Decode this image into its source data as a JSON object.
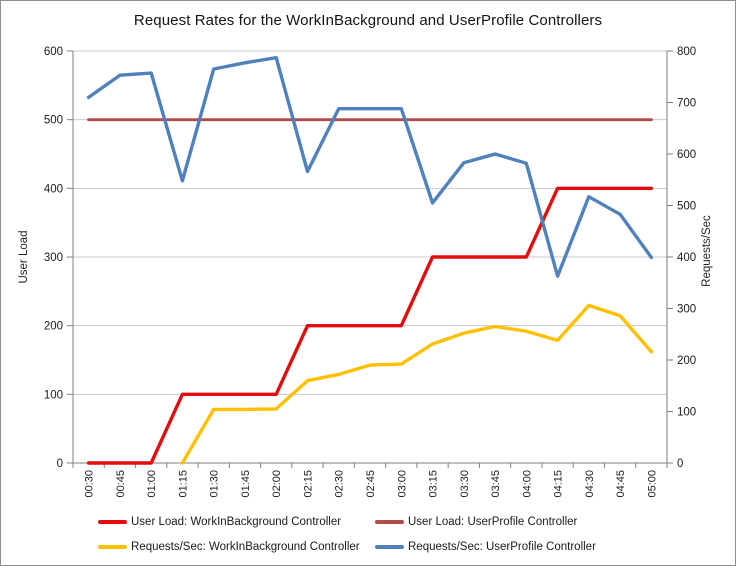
{
  "chart_data": {
    "type": "line",
    "title": "Request Rates for the WorkInBackground and UserProfile Controllers",
    "categories": [
      "00:30",
      "00:45",
      "01:00",
      "01:15",
      "01:30",
      "01:45",
      "02:00",
      "02:15",
      "02:30",
      "02:45",
      "03:00",
      "03:15",
      "03:30",
      "03:45",
      "04:00",
      "04:15",
      "04:30",
      "04:45",
      "05:00"
    ],
    "series": [
      {
        "name": "User Load: WorkInBackground Controller",
        "axis": "left",
        "color": "#e20c0c",
        "values": [
          0,
          0,
          0,
          100,
          100,
          100,
          100,
          200,
          200,
          200,
          200,
          300,
          300,
          300,
          300,
          400,
          400,
          400,
          400
        ]
      },
      {
        "name": "User Load: UserProfile Controller",
        "axis": "left",
        "color": "#b34b47",
        "values": [
          500,
          500,
          500,
          500,
          500,
          500,
          500,
          500,
          500,
          500,
          500,
          500,
          500,
          500,
          500,
          500,
          500,
          500,
          500
        ]
      },
      {
        "name": "Requests/Sec: WorkInBackground Controller",
        "axis": "right",
        "color": "#ffc000",
        "values": [
          null,
          null,
          null,
          0,
          104,
          104,
          105,
          160,
          172,
          190,
          192,
          231,
          252,
          265,
          256,
          238,
          306,
          286,
          216
        ]
      },
      {
        "name": "Requests/Sec: UserProfile Controller",
        "axis": "right",
        "color": "#4f81bd",
        "values": [
          710,
          753,
          757,
          548,
          765,
          777,
          787,
          566,
          688,
          688,
          688,
          505,
          583,
          600,
          582,
          363,
          517,
          483,
          399
        ]
      }
    ],
    "left_axis": {
      "label": "User Load",
      "min": 0,
      "max": 600,
      "ticks": [
        0,
        100,
        200,
        300,
        400,
        500,
        600
      ]
    },
    "right_axis": {
      "label": "Requests/Sec",
      "min": 0,
      "max": 800,
      "ticks": [
        0,
        100,
        200,
        300,
        400,
        500,
        600,
        700,
        800
      ]
    },
    "x_axis": {
      "label_rotation_degrees": -90
    },
    "grid": true,
    "legend_position": "bottom",
    "colors": {
      "gridline": "#c9c9c9",
      "axis_line": "#7f7f7f",
      "background": "#ffffff",
      "frame_border": "#8e8e8e"
    }
  }
}
